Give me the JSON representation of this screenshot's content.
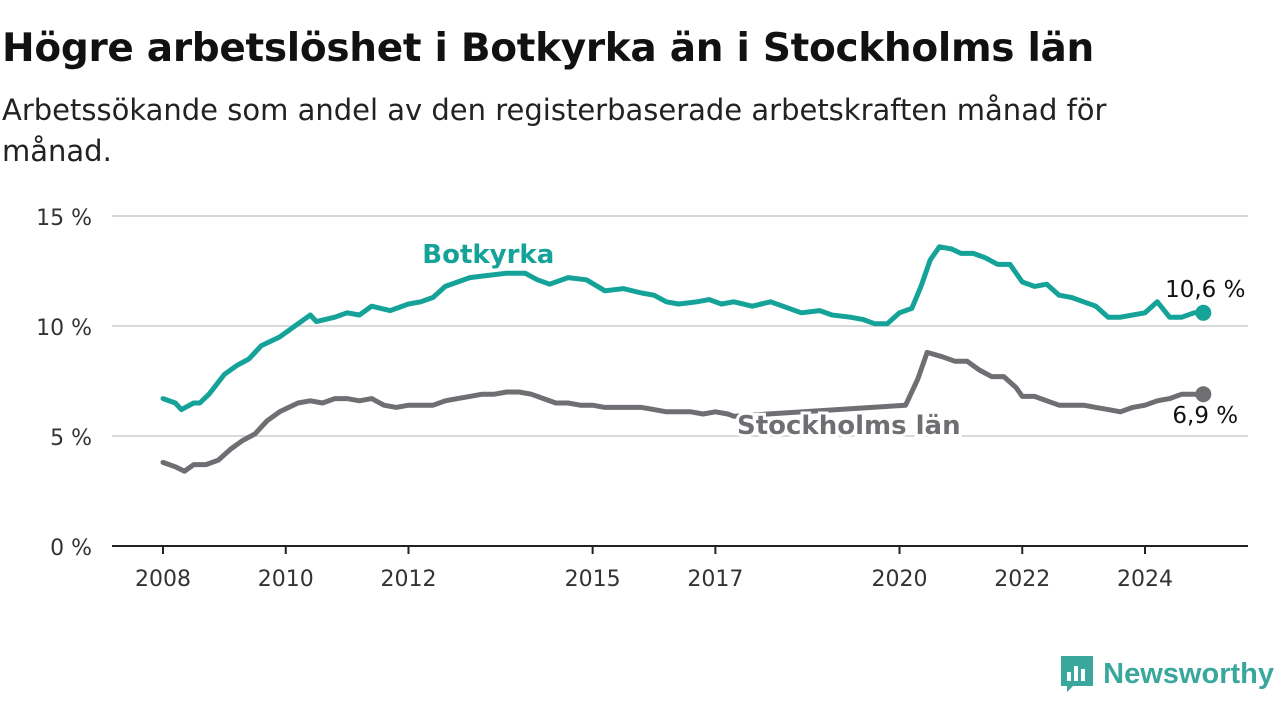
{
  "header": {
    "title": "Högre arbetslöshet i Botkyrka än i Stockholms län",
    "subtitle": "Arbetssökande som andel av den registerbaserade arbetskraften månad för månad."
  },
  "brand": {
    "name": "Newsworthy",
    "icon": "newsworthy-logo-icon",
    "color": "#3aa79c"
  },
  "chart_data": {
    "type": "line",
    "ylim": [
      0,
      15
    ],
    "xlim": [
      2008,
      2025.5
    ],
    "y_ticks": [
      {
        "value": 0,
        "label": "0 %"
      },
      {
        "value": 5,
        "label": "5 %"
      },
      {
        "value": 10,
        "label": "10 %"
      },
      {
        "value": 15,
        "label": "15 %"
      }
    ],
    "x_ticks": [
      {
        "value": 2008,
        "label": "2008"
      },
      {
        "value": 2010,
        "label": "2010"
      },
      {
        "value": 2012,
        "label": "2012"
      },
      {
        "value": 2015,
        "label": "2015"
      },
      {
        "value": 2017,
        "label": "2017"
      },
      {
        "value": 2020,
        "label": "2020"
      },
      {
        "value": 2022,
        "label": "2022"
      },
      {
        "value": 2024,
        "label": "2024"
      }
    ],
    "grid": true,
    "series": [
      {
        "name": "Botkyrka",
        "color": "#15a399",
        "end_label": "10,6 %",
        "points": [
          [
            2008.0,
            6.7
          ],
          [
            2008.2,
            6.5
          ],
          [
            2008.3,
            6.2
          ],
          [
            2008.5,
            6.5
          ],
          [
            2008.6,
            6.5
          ],
          [
            2008.75,
            6.9
          ],
          [
            2009.0,
            7.8
          ],
          [
            2009.2,
            8.2
          ],
          [
            2009.4,
            8.5
          ],
          [
            2009.6,
            9.1
          ],
          [
            2009.9,
            9.5
          ],
          [
            2010.2,
            10.1
          ],
          [
            2010.4,
            10.5
          ],
          [
            2010.5,
            10.2
          ],
          [
            2010.8,
            10.4
          ],
          [
            2011.0,
            10.6
          ],
          [
            2011.2,
            10.5
          ],
          [
            2011.4,
            10.9
          ],
          [
            2011.7,
            10.7
          ],
          [
            2012.0,
            11.0
          ],
          [
            2012.2,
            11.1
          ],
          [
            2012.4,
            11.3
          ],
          [
            2012.6,
            11.8
          ],
          [
            2012.8,
            12.0
          ],
          [
            2013.0,
            12.2
          ],
          [
            2013.3,
            12.3
          ],
          [
            2013.6,
            12.4
          ],
          [
            2013.9,
            12.4
          ],
          [
            2014.1,
            12.1
          ],
          [
            2014.3,
            11.9
          ],
          [
            2014.6,
            12.2
          ],
          [
            2014.9,
            12.1
          ],
          [
            2015.2,
            11.6
          ],
          [
            2015.5,
            11.7
          ],
          [
            2015.8,
            11.5
          ],
          [
            2016.0,
            11.4
          ],
          [
            2016.2,
            11.1
          ],
          [
            2016.4,
            11.0
          ],
          [
            2016.7,
            11.1
          ],
          [
            2016.9,
            11.2
          ],
          [
            2017.1,
            11.0
          ],
          [
            2017.3,
            11.1
          ],
          [
            2017.6,
            10.9
          ],
          [
            2017.9,
            11.1
          ],
          [
            2018.1,
            10.9
          ],
          [
            2018.4,
            10.6
          ],
          [
            2018.7,
            10.7
          ],
          [
            2018.9,
            10.5
          ],
          [
            2019.2,
            10.4
          ],
          [
            2019.4,
            10.3
          ],
          [
            2019.6,
            10.1
          ],
          [
            2019.8,
            10.1
          ],
          [
            2020.0,
            10.6
          ],
          [
            2020.2,
            10.8
          ],
          [
            2020.35,
            11.8
          ],
          [
            2020.5,
            13.0
          ],
          [
            2020.65,
            13.6
          ],
          [
            2020.85,
            13.5
          ],
          [
            2021.0,
            13.3
          ],
          [
            2021.2,
            13.3
          ],
          [
            2021.4,
            13.1
          ],
          [
            2021.6,
            12.8
          ],
          [
            2021.8,
            12.8
          ],
          [
            2022.0,
            12.0
          ],
          [
            2022.2,
            11.8
          ],
          [
            2022.4,
            11.9
          ],
          [
            2022.6,
            11.4
          ],
          [
            2022.8,
            11.3
          ],
          [
            2023.0,
            11.1
          ],
          [
            2023.2,
            10.9
          ],
          [
            2023.4,
            10.4
          ],
          [
            2023.6,
            10.4
          ],
          [
            2023.8,
            10.5
          ],
          [
            2024.0,
            10.6
          ],
          [
            2024.2,
            11.1
          ],
          [
            2024.4,
            10.4
          ],
          [
            2024.6,
            10.4
          ],
          [
            2024.8,
            10.6
          ],
          [
            2024.95,
            10.6
          ]
        ]
      },
      {
        "name": "Stockholms län",
        "color": "#6e6e73",
        "end_label": "6,9 %",
        "points": [
          [
            2008.0,
            3.8
          ],
          [
            2008.2,
            3.6
          ],
          [
            2008.35,
            3.4
          ],
          [
            2008.5,
            3.7
          ],
          [
            2008.7,
            3.7
          ],
          [
            2008.9,
            3.9
          ],
          [
            2009.1,
            4.4
          ],
          [
            2009.3,
            4.8
          ],
          [
            2009.5,
            5.1
          ],
          [
            2009.7,
            5.7
          ],
          [
            2009.9,
            6.1
          ],
          [
            2010.2,
            6.5
          ],
          [
            2010.4,
            6.6
          ],
          [
            2010.6,
            6.5
          ],
          [
            2010.8,
            6.7
          ],
          [
            2011.0,
            6.7
          ],
          [
            2011.2,
            6.6
          ],
          [
            2011.4,
            6.7
          ],
          [
            2011.6,
            6.4
          ],
          [
            2011.8,
            6.3
          ],
          [
            2012.0,
            6.4
          ],
          [
            2012.2,
            6.4
          ],
          [
            2012.4,
            6.4
          ],
          [
            2012.6,
            6.6
          ],
          [
            2012.8,
            6.7
          ],
          [
            2013.0,
            6.8
          ],
          [
            2013.2,
            6.9
          ],
          [
            2013.4,
            6.9
          ],
          [
            2013.6,
            7.0
          ],
          [
            2013.8,
            7.0
          ],
          [
            2014.0,
            6.9
          ],
          [
            2014.2,
            6.7
          ],
          [
            2014.4,
            6.5
          ],
          [
            2014.6,
            6.5
          ],
          [
            2014.8,
            6.4
          ],
          [
            2015.0,
            6.4
          ],
          [
            2015.2,
            6.3
          ],
          [
            2015.4,
            6.3
          ],
          [
            2015.6,
            6.3
          ],
          [
            2015.8,
            6.3
          ],
          [
            2016.0,
            6.2
          ],
          [
            2016.2,
            6.1
          ],
          [
            2016.4,
            6.1
          ],
          [
            2016.6,
            6.1
          ],
          [
            2016.8,
            6.0
          ],
          [
            2017.0,
            6.1
          ],
          [
            2017.2,
            6.0
          ],
          [
            2017.3,
            5.9
          ],
          [
            2020.1,
            6.4
          ],
          [
            2020.3,
            7.6
          ],
          [
            2020.45,
            8.8
          ],
          [
            2020.7,
            8.6
          ],
          [
            2020.9,
            8.4
          ],
          [
            2021.1,
            8.4
          ],
          [
            2021.3,
            8.0
          ],
          [
            2021.5,
            7.7
          ],
          [
            2021.7,
            7.7
          ],
          [
            2021.9,
            7.2
          ],
          [
            2022.0,
            6.8
          ],
          [
            2022.2,
            6.8
          ],
          [
            2022.4,
            6.6
          ],
          [
            2022.6,
            6.4
          ],
          [
            2022.8,
            6.4
          ],
          [
            2023.0,
            6.4
          ],
          [
            2023.2,
            6.3
          ],
          [
            2023.4,
            6.2
          ],
          [
            2023.6,
            6.1
          ],
          [
            2023.8,
            6.3
          ],
          [
            2024.0,
            6.4
          ],
          [
            2024.2,
            6.6
          ],
          [
            2024.4,
            6.7
          ],
          [
            2024.6,
            6.9
          ],
          [
            2024.8,
            6.9
          ],
          [
            2024.95,
            6.9
          ]
        ]
      }
    ]
  }
}
